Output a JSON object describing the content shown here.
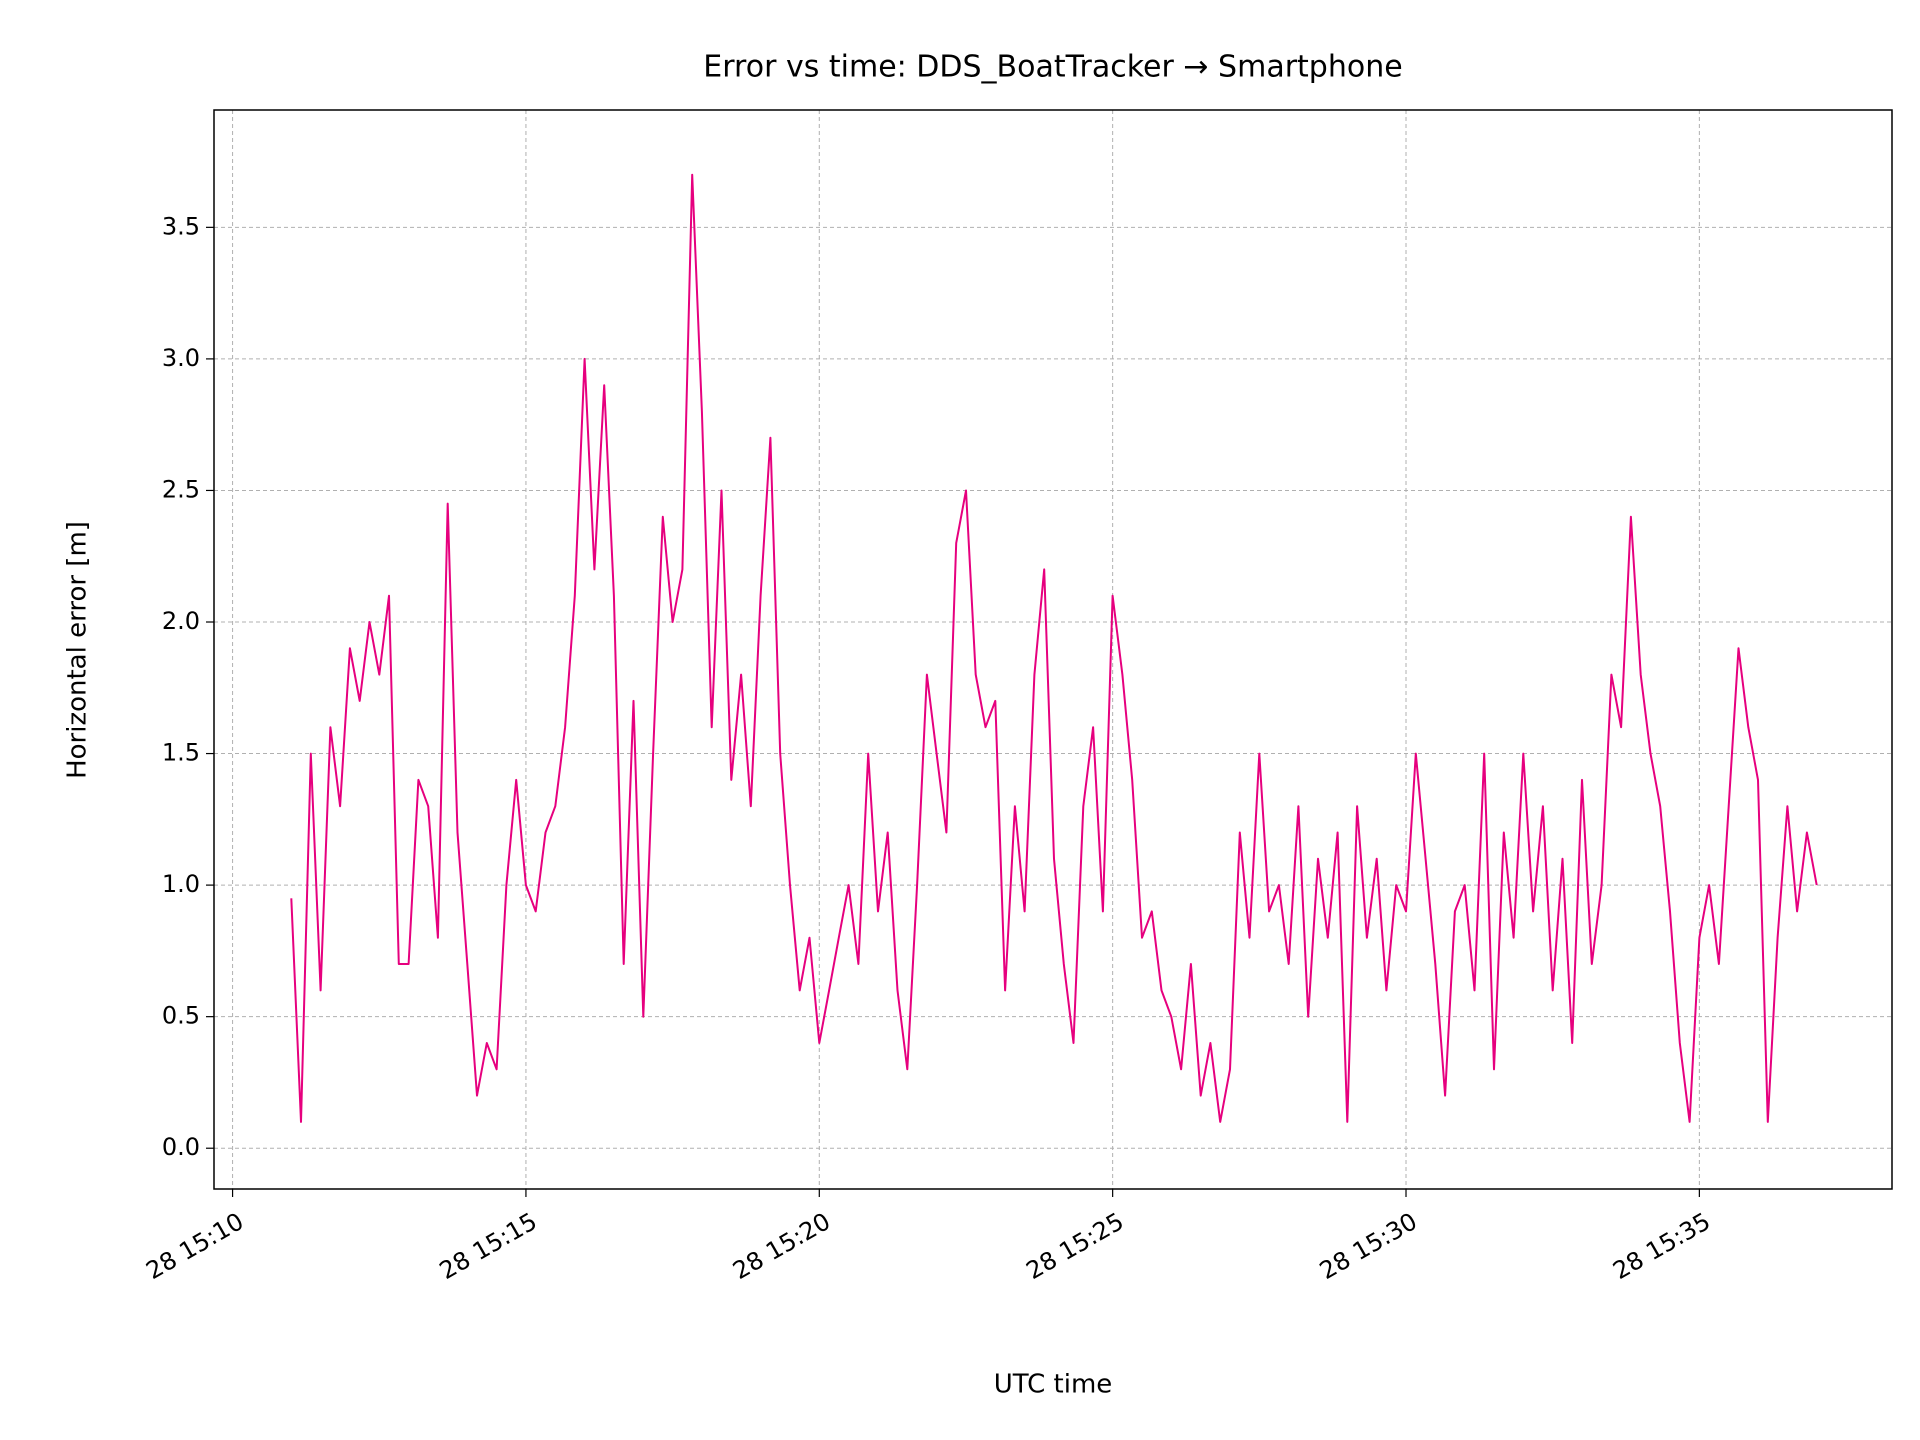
{
  "chart_data": {
    "type": "line",
    "title": "Error vs time: DDS_BoatTracker → Smartphone",
    "xlabel": "UTC time",
    "ylabel": "Horizontal error [m]",
    "grid": true,
    "xlim": [
      "28 15:09:41",
      "28 15:38:17"
    ],
    "ylim": [
      -0.155,
      3.946
    ],
    "xticks": [
      {
        "value": "28 15:10:00",
        "label": "28 15:10"
      },
      {
        "value": "28 15:15:00",
        "label": "28 15:15"
      },
      {
        "value": "28 15:20:00",
        "label": "28 15:20"
      },
      {
        "value": "28 15:25:00",
        "label": "28 15:25"
      },
      {
        "value": "28 15:30:00",
        "label": "28 15:30"
      },
      {
        "value": "28 15:35:00",
        "label": "28 15:35"
      }
    ],
    "yticks": [
      {
        "value": 0,
        "label": "0.0"
      },
      0.5,
      {
        "value": 1,
        "label": "1.0"
      },
      1.5,
      {
        "value": 2,
        "label": "2.0"
      },
      2.5,
      {
        "value": 3,
        "label": "3.0"
      },
      3.5
    ],
    "x": [
      "28 15:11:00",
      "28 15:11:10",
      "28 15:11:20",
      "28 15:11:30",
      "28 15:11:40",
      "28 15:11:50",
      "28 15:12:00",
      "28 15:12:10",
      "28 15:12:20",
      "28 15:12:30",
      "28 15:12:40",
      "28 15:12:50",
      "28 15:13:00",
      "28 15:13:10",
      "28 15:13:20",
      "28 15:13:30",
      "28 15:13:40",
      "28 15:13:50",
      "28 15:14:00",
      "28 15:14:10",
      "28 15:14:20",
      "28 15:14:30",
      "28 15:14:40",
      "28 15:14:50",
      "28 15:15:00",
      "28 15:15:10",
      "28 15:15:20",
      "28 15:15:30",
      "28 15:15:40",
      "28 15:15:50",
      "28 15:16:00",
      "28 15:16:10",
      "28 15:16:20",
      "28 15:16:30",
      "28 15:16:40",
      "28 15:16:50",
      "28 15:17:00",
      "28 15:17:10",
      "28 15:17:20",
      "28 15:17:30",
      "28 15:17:40",
      "28 15:17:50",
      "28 15:18:00",
      "28 15:18:10",
      "28 15:18:20",
      "28 15:18:30",
      "28 15:18:40",
      "28 15:18:50",
      "28 15:19:00",
      "28 15:19:10",
      "28 15:19:20",
      "28 15:19:30",
      "28 15:19:40",
      "28 15:19:50",
      "28 15:20:00",
      "28 15:20:10",
      "28 15:20:20",
      "28 15:20:30",
      "28 15:20:40",
      "28 15:20:50",
      "28 15:21:00",
      "28 15:21:10",
      "28 15:21:20",
      "28 15:21:30",
      "28 15:21:40",
      "28 15:21:50",
      "28 15:22:00",
      "28 15:22:10",
      "28 15:22:20",
      "28 15:22:30",
      "28 15:22:40",
      "28 15:22:50",
      "28 15:23:00",
      "28 15:23:10",
      "28 15:23:20",
      "28 15:23:30",
      "28 15:23:40",
      "28 15:23:50",
      "28 15:24:00",
      "28 15:24:10",
      "28 15:24:20",
      "28 15:24:30",
      "28 15:24:40",
      "28 15:24:50",
      "28 15:25:00",
      "28 15:25:10",
      "28 15:25:20",
      "28 15:25:30",
      "28 15:25:40",
      "28 15:25:50",
      "28 15:26:00",
      "28 15:26:10",
      "28 15:26:20",
      "28 15:26:30",
      "28 15:26:40",
      "28 15:26:50",
      "28 15:27:00",
      "28 15:27:10",
      "28 15:27:20",
      "28 15:27:30",
      "28 15:27:40",
      "28 15:27:50",
      "28 15:28:00",
      "28 15:28:10",
      "28 15:28:20",
      "28 15:28:30",
      "28 15:28:40",
      "28 15:28:50",
      "28 15:29:00",
      "28 15:29:10",
      "28 15:29:20",
      "28 15:29:30",
      "28 15:29:40",
      "28 15:29:50",
      "28 15:30:00",
      "28 15:30:10",
      "28 15:30:20",
      "28 15:30:30",
      "28 15:30:40",
      "28 15:30:50",
      "28 15:31:00",
      "28 15:31:10",
      "28 15:31:20",
      "28 15:31:30",
      "28 15:31:40",
      "28 15:31:50",
      "28 15:32:00",
      "28 15:32:10",
      "28 15:32:20",
      "28 15:32:30",
      "28 15:32:40",
      "28 15:32:50",
      "28 15:33:00",
      "28 15:33:10",
      "28 15:33:20",
      "28 15:33:30",
      "28 15:33:40",
      "28 15:33:50",
      "28 15:34:00",
      "28 15:34:10",
      "28 15:34:20",
      "28 15:34:30",
      "28 15:34:40",
      "28 15:34:50",
      "28 15:35:00",
      "28 15:35:10",
      "28 15:35:20",
      "28 15:35:30",
      "28 15:35:40",
      "28 15:35:50",
      "28 15:36:00",
      "28 15:36:10",
      "28 15:36:20",
      "28 15:36:30",
      "28 15:36:40",
      "28 15:36:50",
      "28 15:37:00"
    ],
    "series": [
      {
        "name": "DDS_BoatTracker → Smartphone",
        "color": "#e6007e",
        "values": [
          0.95,
          0.1,
          1.5,
          0.6,
          1.6,
          1.3,
          1.9,
          1.7,
          2.0,
          1.8,
          2.1,
          0.7,
          0.7,
          1.4,
          1.3,
          0.8,
          2.45,
          1.2,
          0.7,
          0.2,
          0.4,
          0.3,
          1.0,
          1.4,
          1.0,
          0.9,
          1.2,
          1.3,
          1.6,
          2.1,
          3.0,
          2.2,
          2.9,
          2.1,
          0.7,
          1.7,
          0.5,
          1.5,
          2.4,
          2.0,
          2.2,
          3.7,
          2.8,
          1.6,
          2.5,
          1.4,
          1.8,
          1.3,
          2.1,
          2.7,
          1.5,
          1.0,
          0.6,
          0.8,
          0.4,
          0.6,
          0.8,
          1.0,
          0.7,
          1.5,
          0.9,
          1.2,
          0.6,
          0.3,
          1.0,
          1.8,
          1.5,
          1.2,
          2.3,
          2.5,
          1.8,
          1.6,
          1.7,
          0.6,
          1.3,
          0.9,
          1.8,
          2.2,
          1.1,
          0.7,
          0.4,
          1.3,
          1.6,
          0.9,
          2.1,
          1.8,
          1.4,
          0.8,
          0.9,
          0.6,
          0.5,
          0.3,
          0.7,
          0.2,
          0.4,
          0.1,
          0.3,
          1.2,
          0.8,
          1.5,
          0.9,
          1.0,
          0.7,
          1.3,
          0.5,
          1.1,
          0.8,
          1.2,
          0.1,
          1.3,
          0.8,
          1.1,
          0.6,
          1.0,
          0.9,
          1.5,
          1.1,
          0.7,
          0.2,
          0.9,
          1.0,
          0.6,
          1.5,
          0.3,
          1.2,
          0.8,
          1.5,
          0.9,
          1.3,
          0.6,
          1.1,
          0.4,
          1.4,
          0.7,
          1.0,
          1.8,
          1.6,
          2.4,
          1.8,
          1.5,
          1.3,
          0.9,
          0.4,
          0.1,
          0.8,
          1.0,
          0.7,
          1.3,
          1.9,
          1.6,
          1.4,
          0.1,
          0.8,
          1.3,
          0.9,
          1.2,
          1.0
        ]
      }
    ]
  }
}
